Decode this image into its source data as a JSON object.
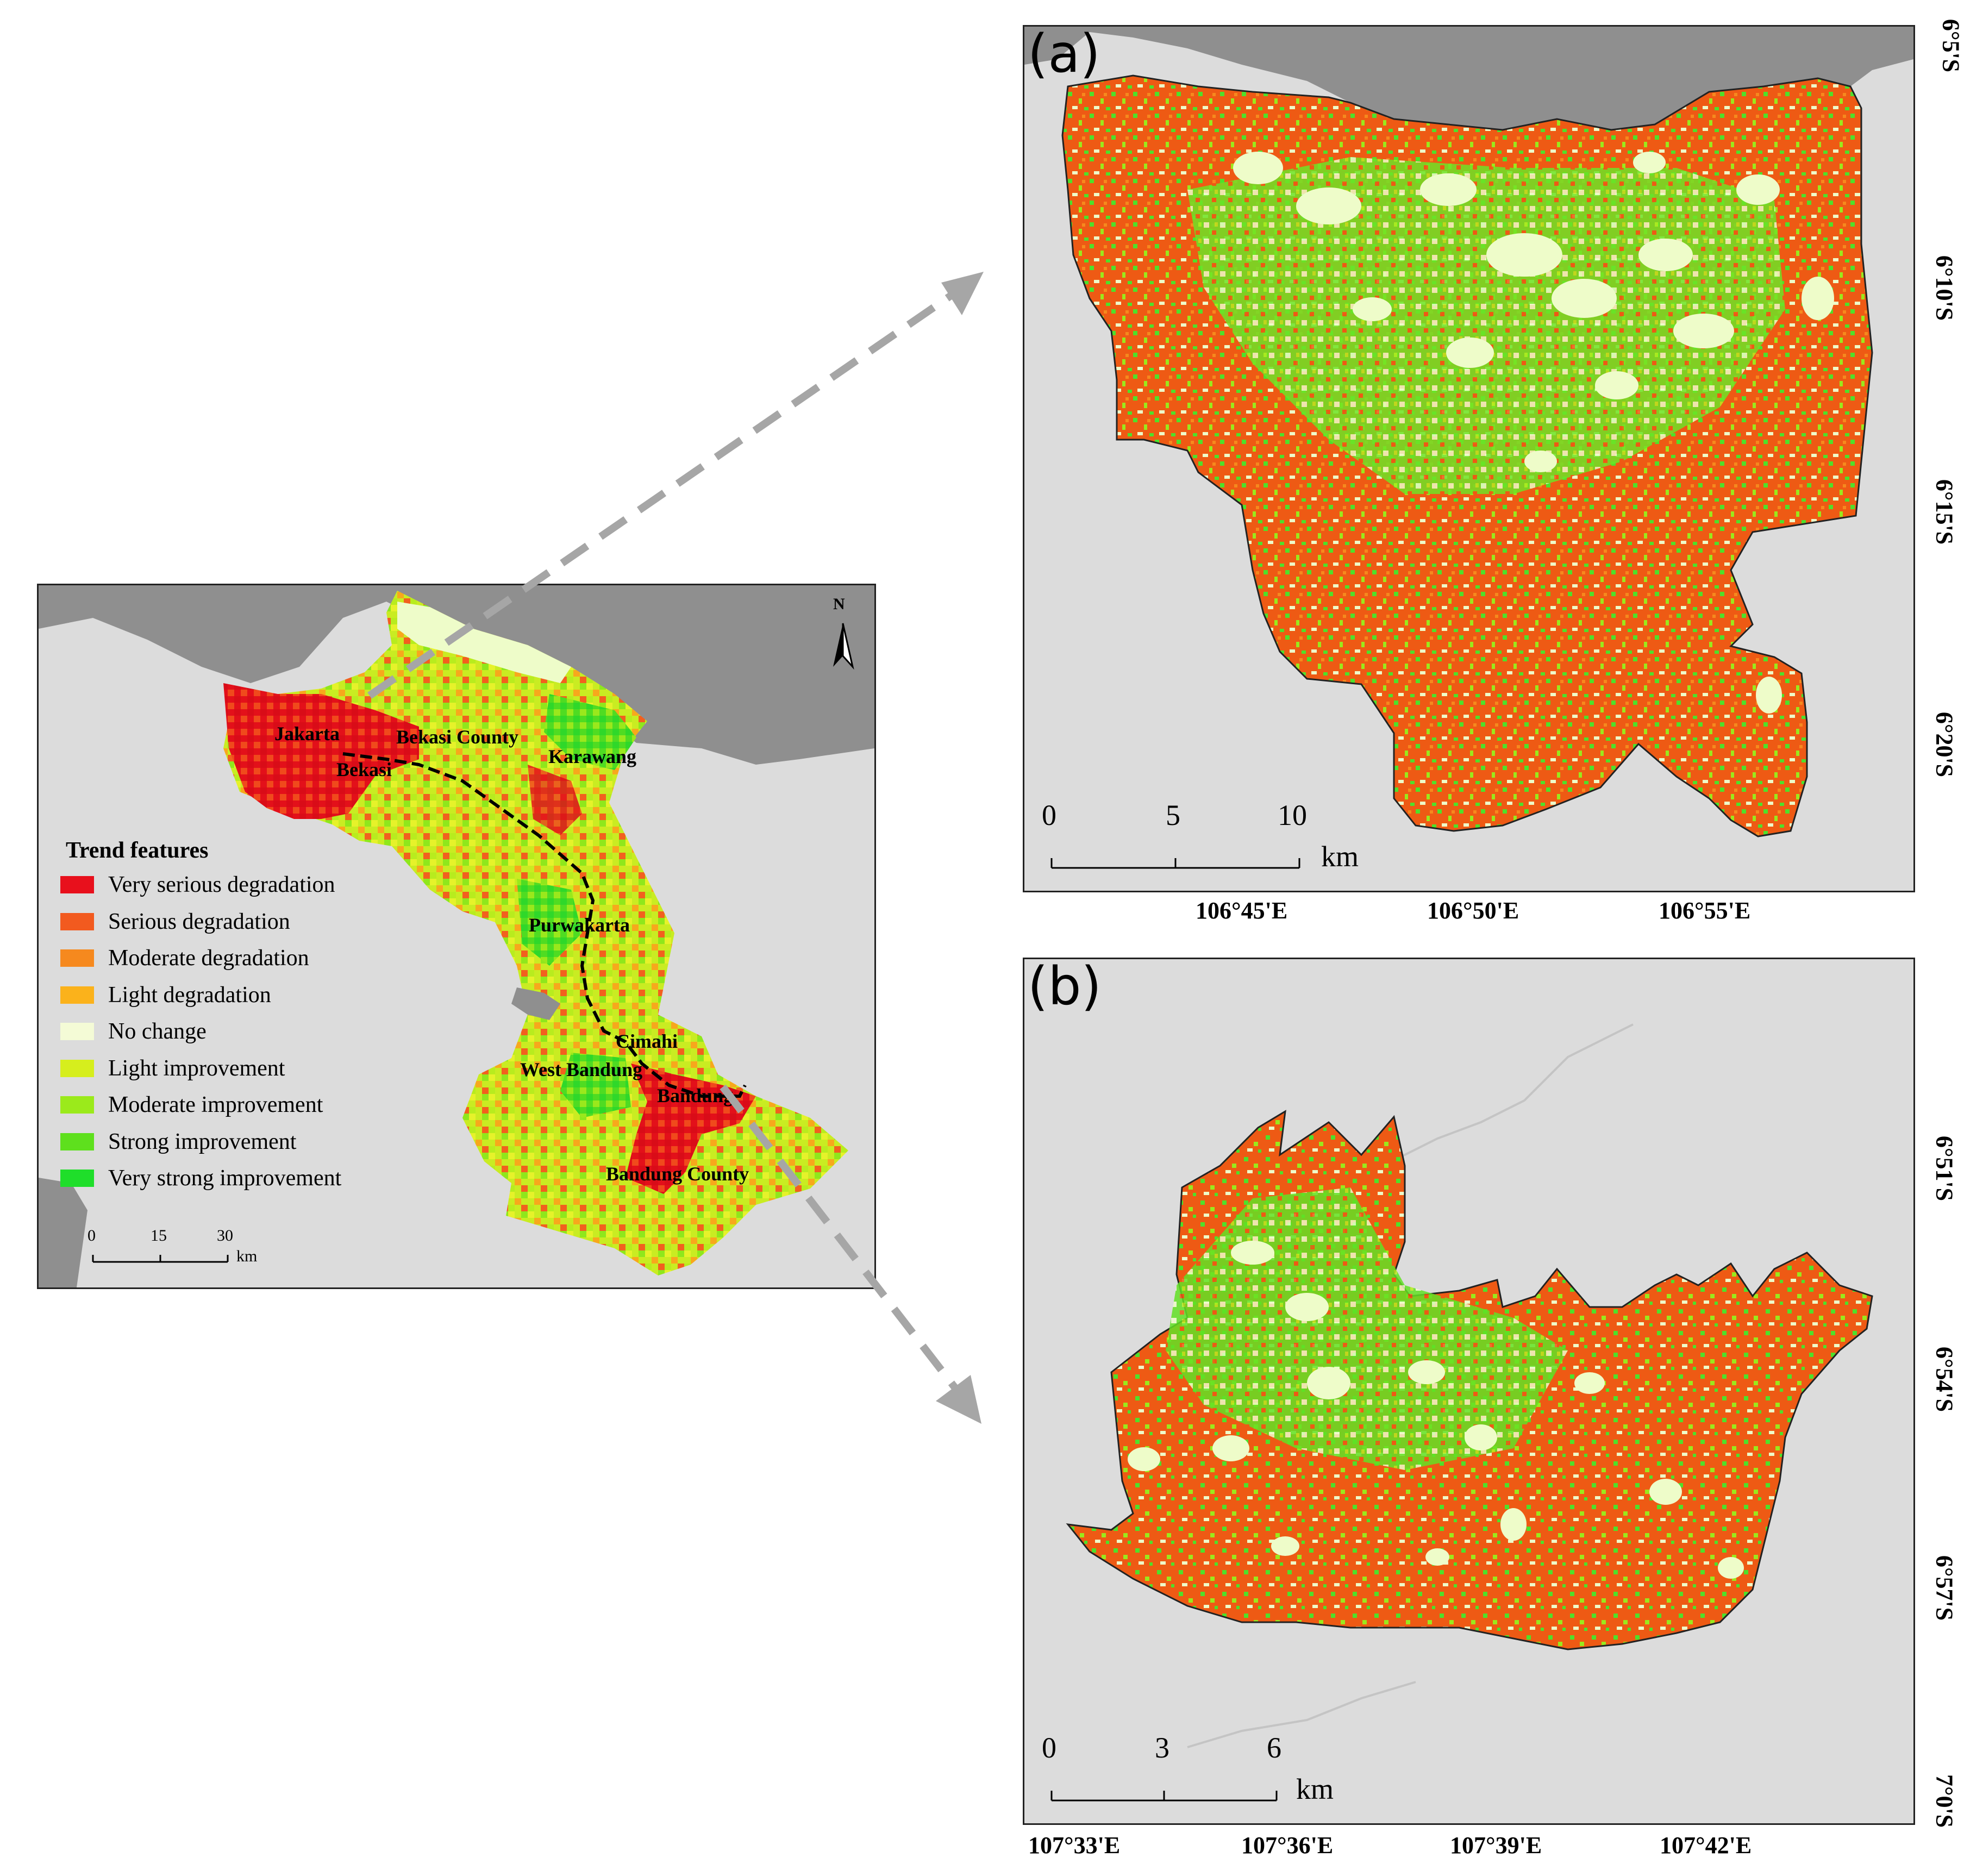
{
  "overview": {
    "north_label": "N",
    "place_labels": [
      {
        "name": "Jakarta"
      },
      {
        "name": "Bekasi County"
      },
      {
        "name": "Bekasi"
      },
      {
        "name": "Karawang"
      },
      {
        "name": "Purwakarta"
      },
      {
        "name": "Cimahi"
      },
      {
        "name": "West Bandung"
      },
      {
        "name": "Bandung"
      },
      {
        "name": "Bandung County"
      }
    ],
    "legend": {
      "title": "Trend features",
      "items": [
        {
          "label": "Very serious degradation",
          "color": "#e8101c"
        },
        {
          "label": "Serious degradation",
          "color": "#f25a1f"
        },
        {
          "label": "Moderate degradation",
          "color": "#f6891e"
        },
        {
          "label": "Light degradation",
          "color": "#fbb21b"
        },
        {
          "label": "No change",
          "color": "#f4fbd6"
        },
        {
          "label": "Light improvement",
          "color": "#d6ee1d"
        },
        {
          "label": "Moderate improvement",
          "color": "#9bea1b"
        },
        {
          "label": "Strong improvement",
          "color": "#5ee01d"
        },
        {
          "label": "Very strong improvement",
          "color": "#1fde2a"
        }
      ]
    },
    "scale": {
      "ticks": [
        "0",
        "15",
        "30"
      ],
      "unit": "km"
    }
  },
  "panel_a": {
    "label": "(a)",
    "scale": {
      "ticks": [
        "0",
        "5",
        "10"
      ],
      "unit": "km"
    },
    "x_ticks": [
      "106°45'E",
      "106°50'E",
      "106°55'E"
    ],
    "y_ticks": [
      "6°5'S",
      "6°10'S",
      "6°15'S",
      "6°20'S"
    ]
  },
  "panel_b": {
    "label": "(b)",
    "scale": {
      "ticks": [
        "0",
        "3",
        "6"
      ],
      "unit": "km"
    },
    "x_ticks": [
      "107°33'E",
      "107°36'E",
      "107°39'E",
      "107°42'E"
    ],
    "y_ticks": [
      "6°51'S",
      "6°54'S",
      "6°57'S",
      "7°0'S"
    ]
  },
  "colors": {
    "land": "#dcdcdc",
    "sea": "#8f8f8f",
    "arrow": "#a6a6a6",
    "map_orange": "#ee5a14",
    "map_green": "#4fe02a",
    "map_pale": "#eefcc9"
  }
}
